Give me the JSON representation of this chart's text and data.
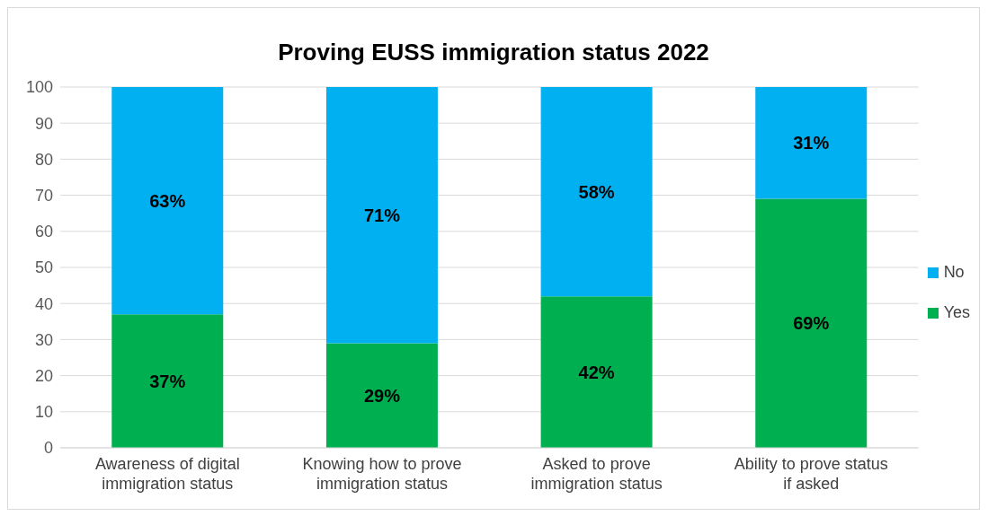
{
  "chart_data": {
    "type": "bar",
    "title": "Proving EUSS immigration status 2022",
    "stacked": true,
    "categories": [
      "Awareness of digital immigration status",
      "Knowing how to prove immigration status",
      "Asked to prove immigration status",
      "Ability to prove status if asked"
    ],
    "series": [
      {
        "name": "Yes",
        "color": "#00b050",
        "values": [
          37,
          29,
          42,
          69
        ],
        "value_labels": [
          "37%",
          "29%",
          "42%",
          "69%"
        ]
      },
      {
        "name": "No",
        "color": "#00b0f0",
        "values": [
          63,
          71,
          58,
          31
        ],
        "value_labels": [
          "63%",
          "71%",
          "58%",
          "31%"
        ]
      }
    ],
    "ylim": [
      0,
      100
    ],
    "yticks": [
      0,
      10,
      20,
      30,
      40,
      50,
      60,
      70,
      80,
      90,
      100
    ],
    "grid": "y",
    "legend": "right"
  }
}
